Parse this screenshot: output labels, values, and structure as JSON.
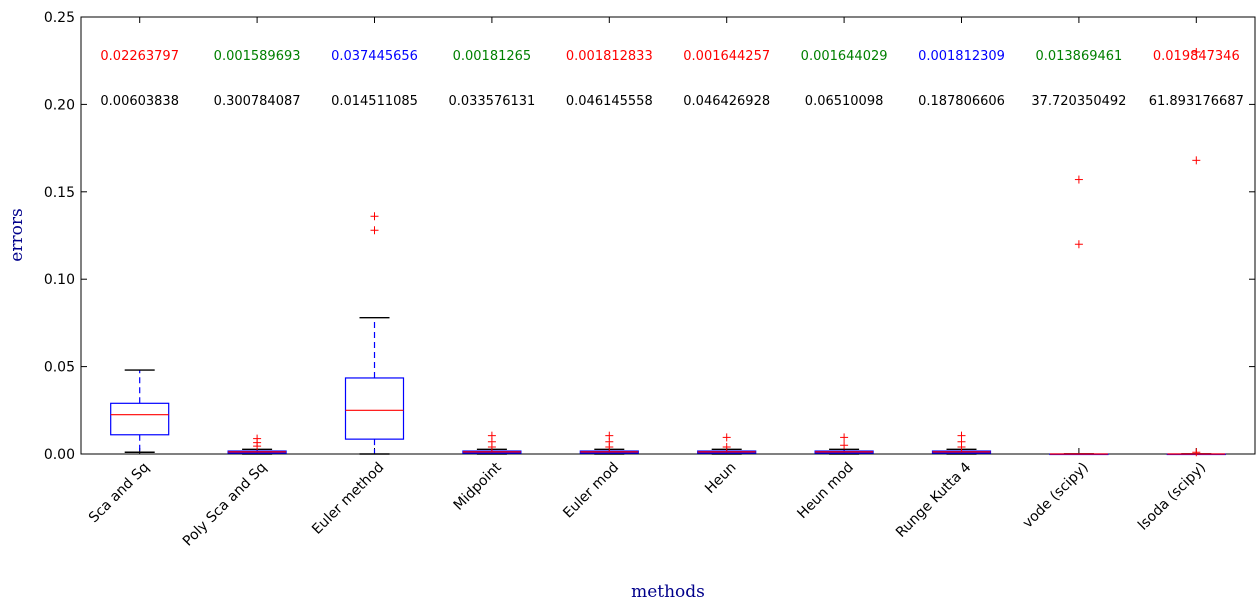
{
  "chart_data": {
    "type": "box",
    "title": "",
    "xlabel": "methods",
    "ylabel": "errors",
    "ylim": [
      0,
      0.25
    ],
    "yticks": [
      "0.00",
      "0.05",
      "0.10",
      "0.15",
      "0.20",
      "0.25"
    ],
    "grid": false,
    "colors": {
      "box": "#0000ff",
      "median": "#ff0000",
      "whisker": "#0000ff",
      "cap": "#000000",
      "flier": "#ff0000",
      "axis_title": "#00008b",
      "red": "#ff0000",
      "green": "#008000",
      "blue": "#0000ff",
      "black": "#000000"
    },
    "categories": [
      "Sca and Sq",
      "Poly Sca and Sq",
      "Euler method",
      "Midpoint",
      "Euler mod",
      "Heun",
      "Heun mod",
      "Runge Kutta 4",
      "vode (scipy)",
      "lsoda (scipy)"
    ],
    "boxes": [
      {
        "whislo": 0.001,
        "q1": 0.011,
        "median": 0.0225,
        "q3": 0.029,
        "whishi": 0.048,
        "fliers": []
      },
      {
        "whislo": 0.0,
        "q1": 0.0005,
        "median": 0.0012,
        "q3": 0.0017,
        "whishi": 0.0027,
        "fliers": [
          0.0045,
          0.0065,
          0.0088
        ]
      },
      {
        "whislo": 0.0,
        "q1": 0.0085,
        "median": 0.025,
        "q3": 0.0435,
        "whishi": 0.078,
        "fliers": [
          0.128,
          0.136
        ]
      },
      {
        "whislo": 0.0,
        "q1": 0.0005,
        "median": 0.0012,
        "q3": 0.0017,
        "whishi": 0.0027,
        "fliers": [
          0.004,
          0.007,
          0.0105
        ]
      },
      {
        "whislo": 0.0,
        "q1": 0.0005,
        "median": 0.0012,
        "q3": 0.0017,
        "whishi": 0.0027,
        "fliers": [
          0.004,
          0.007,
          0.0105
        ]
      },
      {
        "whislo": 0.0,
        "q1": 0.0005,
        "median": 0.0012,
        "q3": 0.0017,
        "whishi": 0.0027,
        "fliers": [
          0.004,
          0.0095
        ]
      },
      {
        "whislo": 0.0,
        "q1": 0.0005,
        "median": 0.0012,
        "q3": 0.0017,
        "whishi": 0.0027,
        "fliers": [
          0.005,
          0.0095
        ]
      },
      {
        "whislo": 0.0,
        "q1": 0.0005,
        "median": 0.0012,
        "q3": 0.0017,
        "whishi": 0.0027,
        "fliers": [
          0.004,
          0.007,
          0.0105
        ]
      },
      {
        "whislo": 0.0,
        "q1": 0.0,
        "median": 0.0,
        "q3": 0.0,
        "whishi": 0.0,
        "fliers": [
          0.12,
          0.157
        ]
      },
      {
        "whislo": 0.0,
        "q1": 0.0,
        "median": 0.0,
        "q3": 0.0,
        "whishi": 0.0,
        "fliers": [
          0.001,
          0.168,
          0.23
        ]
      }
    ],
    "annotations_top": [
      {
        "text": "0.02263797",
        "color": "red"
      },
      {
        "text": "0.001589693",
        "color": "green"
      },
      {
        "text": "0.037445656",
        "color": "blue"
      },
      {
        "text": "0.00181265",
        "color": "green"
      },
      {
        "text": "0.001812833",
        "color": "red"
      },
      {
        "text": "0.001644257",
        "color": "red"
      },
      {
        "text": "0.001644029",
        "color": "green"
      },
      {
        "text": "0.001812309",
        "color": "blue"
      },
      {
        "text": "0.013869461",
        "color": "green"
      },
      {
        "text": "0.019847346",
        "color": "red"
      }
    ],
    "annotations_bottom": [
      {
        "text": "0.00603838"
      },
      {
        "text": "0.300784087"
      },
      {
        "text": "0.014511085"
      },
      {
        "text": "0.033576131"
      },
      {
        "text": "0.046145558"
      },
      {
        "text": "0.046426928"
      },
      {
        "text": "0.06510098"
      },
      {
        "text": "0.187806606"
      },
      {
        "text": "37.720350492"
      },
      {
        "text": "61.893176687"
      }
    ]
  }
}
